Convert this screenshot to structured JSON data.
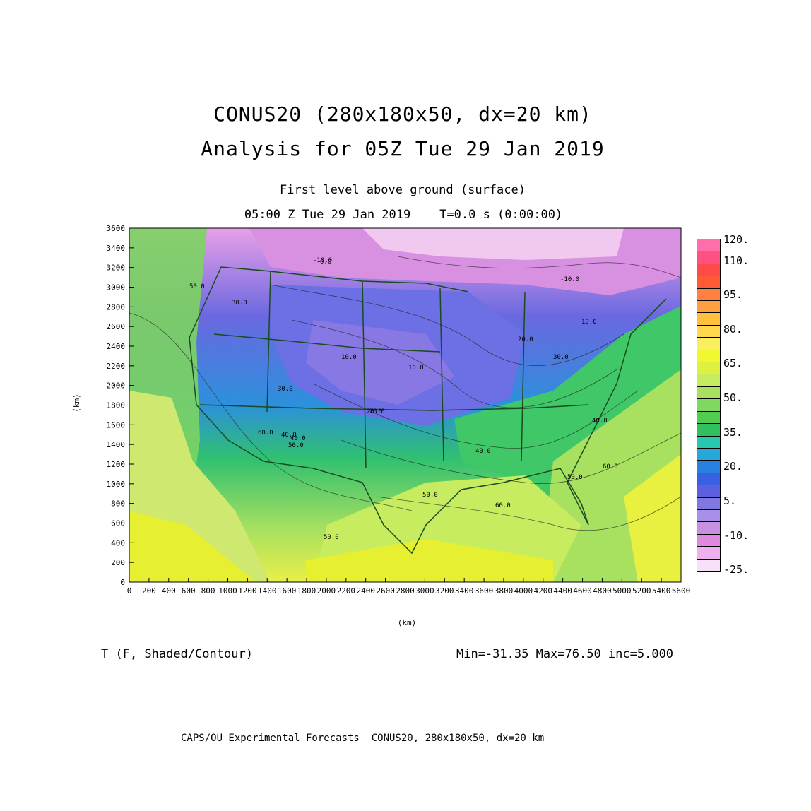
{
  "title_line1": "CONUS20 (280x180x50, dx=20 km)",
  "title_line2": "Analysis for 05Z Tue 29 Jan 2019",
  "subtitle_level": "First level above ground (surface)",
  "subtitle_time": "05:00 Z Tue 29 Jan 2019    T=0.0 s (0:00:00)",
  "x_axis_label": "(km)",
  "y_axis_label": "(km)",
  "x_ticks": [
    "0",
    "200",
    "400",
    "600",
    "800",
    "1000",
    "1200",
    "1400",
    "1600",
    "1800",
    "2000",
    "2200",
    "2400",
    "2600",
    "2800",
    "3000",
    "3200",
    "3400",
    "3600",
    "3800",
    "4000",
    "4200",
    "4400",
    "4600",
    "4800",
    "5000",
    "5200",
    "5400",
    "5600"
  ],
  "y_ticks": [
    "0",
    "200",
    "400",
    "600",
    "800",
    "1000",
    "1200",
    "1400",
    "1600",
    "1800",
    "2000",
    "2200",
    "2400",
    "2600",
    "2800",
    "3000",
    "3200",
    "3400",
    "3600"
  ],
  "x_range": [
    0,
    5600
  ],
  "y_range": [
    0,
    3600
  ],
  "variable_label": "T (F, Shaded/Contour)",
  "stats": "Min=-31.35 Max=76.50 inc=5.000",
  "footer": "CAPS/OU Experimental Forecasts  CONUS20, 280x180x50, dx=20 km",
  "colorbar": {
    "labels": [
      "120.",
      "110.",
      "95.",
      "80.",
      "65.",
      "50.",
      "35.",
      "20.",
      "5.",
      "-10.",
      "-25."
    ],
    "colors": [
      "#ff6ea8",
      "#ff5080",
      "#ff4a4a",
      "#ff5a35",
      "#ff8040",
      "#ffa040",
      "#ffc040",
      "#ffd850",
      "#f8f060",
      "#f0f830",
      "#e0f040",
      "#c8ec60",
      "#a8e060",
      "#80d860",
      "#50cc50",
      "#30c060",
      "#28c8b0",
      "#28a8d8",
      "#2880e0",
      "#3860e0",
      "#5a60e0",
      "#8078e0",
      "#a890e8",
      "#c890e0",
      "#e088e0",
      "#f0b0f0",
      "#f8e0f8"
    ]
  },
  "contour_labels": [
    "-10.0",
    "-10.0",
    "0.0",
    "10.0",
    "10.0",
    "20.0",
    "20.0",
    "30.0",
    "30.0",
    "30.0",
    "40.0",
    "40.0",
    "50.0",
    "50.0",
    "50.0",
    "60.0",
    "60.0",
    "50.0",
    "20.0",
    "10.0",
    "40.0",
    "50.0",
    "60.0",
    "40.0"
  ]
}
